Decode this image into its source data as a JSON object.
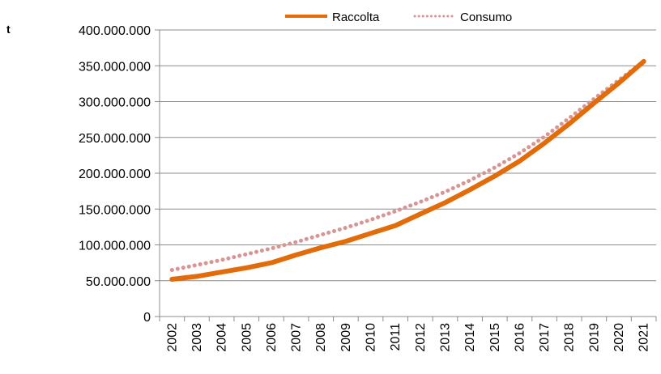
{
  "chart_data": {
    "type": "line",
    "title": "",
    "xlabel": "",
    "ylabel": "t",
    "ylim": [
      0,
      400000000
    ],
    "ytick_step": 50000000,
    "ytick_labels": [
      "0",
      "50.000.000",
      "100.000.000",
      "150.000.000",
      "200.000.000",
      "250.000.000",
      "300.000.000",
      "350.000.000",
      "400.000.000"
    ],
    "grid": "horizontal",
    "legend_position": "top",
    "categories": [
      "2002",
      "2003",
      "2004",
      "2005",
      "2006",
      "2007",
      "2008",
      "2009",
      "2010",
      "2011",
      "2012",
      "2013",
      "2014",
      "2015",
      "2016",
      "2017",
      "2018",
      "2019",
      "2020",
      "2021"
    ],
    "series": [
      {
        "name": "Raccolta",
        "style": "solid",
        "color": "#E36C0A",
        "values": [
          52000000,
          56000000,
          62000000,
          68000000,
          75000000,
          86000000,
          96000000,
          105000000,
          116000000,
          127000000,
          143000000,
          159000000,
          177000000,
          196000000,
          217000000,
          242000000,
          269000000,
          298000000,
          326000000,
          356000000
        ]
      },
      {
        "name": "Consumo",
        "style": "dotted",
        "color": "#D99594",
        "values": [
          65000000,
          72000000,
          79000000,
          87000000,
          95000000,
          104000000,
          114000000,
          124000000,
          135000000,
          147000000,
          160000000,
          174000000,
          190000000,
          208000000,
          228000000,
          251000000,
          277000000,
          304000000,
          330000000,
          356000000
        ]
      }
    ]
  }
}
